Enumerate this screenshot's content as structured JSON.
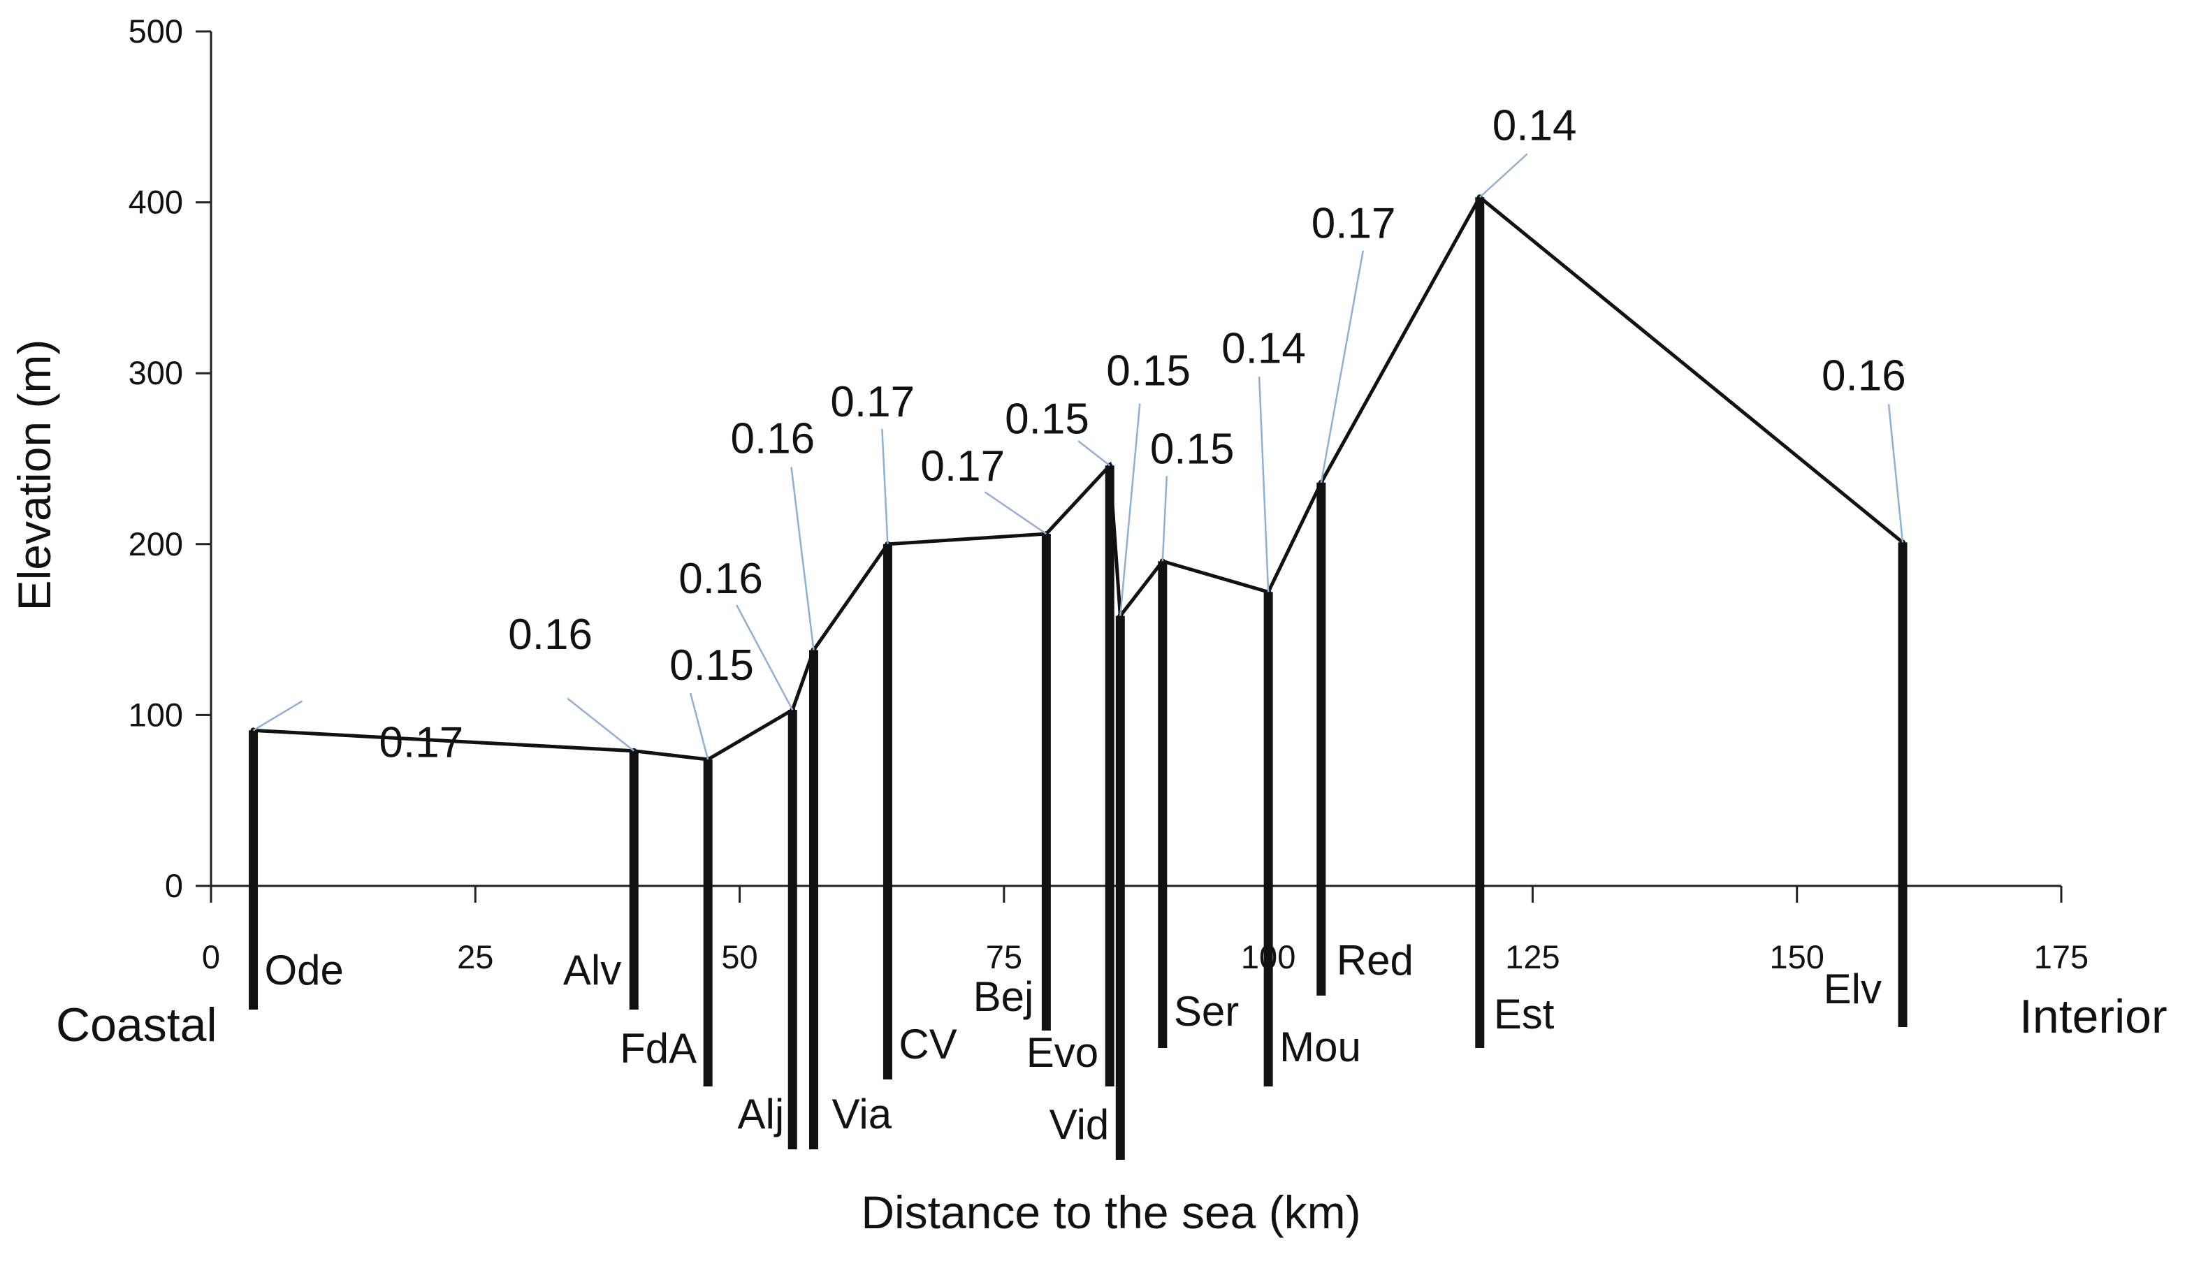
{
  "chart_data": {
    "type": "line",
    "xlabel": "Distance to the sea (km)",
    "ylabel": "Elevation (m)",
    "xlim": [
      0,
      175
    ],
    "ylim": [
      0,
      500
    ],
    "x_ticks": [
      0,
      25,
      50,
      75,
      100,
      125,
      150,
      175
    ],
    "y_ticks": [
      0,
      100,
      200,
      300,
      400,
      500
    ],
    "grid": false,
    "end_labels": {
      "left": "Coastal",
      "right": "Interior"
    },
    "sites": [
      {
        "label": "Ode",
        "x": 4,
        "elevation": 91,
        "value": "0.17"
      },
      {
        "label": "Alv",
        "x": 40,
        "elevation": 79,
        "value": "0.16"
      },
      {
        "label": "FdA",
        "x": 47,
        "elevation": 74,
        "value": "0.15"
      },
      {
        "label": "Alj",
        "x": 55,
        "elevation": 103,
        "value": "0.16"
      },
      {
        "label": "Via",
        "x": 57,
        "elevation": 138,
        "value": "0.16"
      },
      {
        "label": "CV",
        "x": 64,
        "elevation": 200,
        "value": "0.17"
      },
      {
        "label": "Bej",
        "x": 79,
        "elevation": 206,
        "value": "0.17"
      },
      {
        "label": "Evo",
        "x": 85,
        "elevation": 246,
        "value": "0.15"
      },
      {
        "label": "Vid",
        "x": 86,
        "elevation": 158,
        "value": "0.15"
      },
      {
        "label": "Ser",
        "x": 90,
        "elevation": 190,
        "value": "0.15"
      },
      {
        "label": "Mou",
        "x": 100,
        "elevation": 172,
        "value": "0.14"
      },
      {
        "label": "Red",
        "x": 105,
        "elevation": 236,
        "value": "0.17"
      },
      {
        "label": "Est",
        "x": 120,
        "elevation": 403,
        "value": "0.14"
      },
      {
        "label": "Elv",
        "x": 160,
        "elevation": 201,
        "value": "0.16"
      }
    ],
    "colors": {
      "line": "#111111",
      "leader": "#8fb0d6"
    }
  }
}
